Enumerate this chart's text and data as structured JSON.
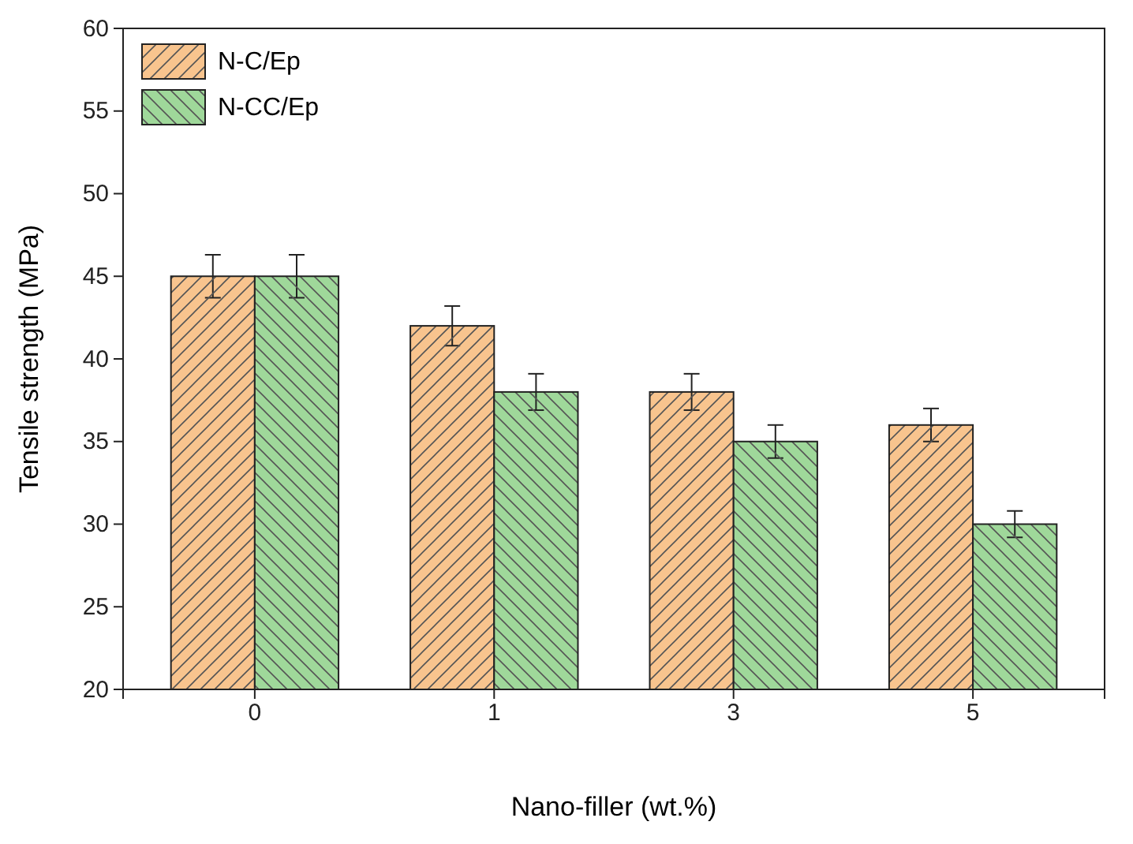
{
  "chart_data": {
    "type": "bar",
    "xlabel": "Nano-filler (wt.%)",
    "ylabel": "Tensile strength (MPa)",
    "categories": [
      "0",
      "1",
      "3",
      "5"
    ],
    "series": [
      {
        "name": "N-C/Ep",
        "color": "#f8c48e",
        "values": [
          45,
          42,
          38,
          36
        ],
        "errors": [
          1.3,
          1.2,
          1.1,
          1.0
        ]
      },
      {
        "name": "N-CC/Ep",
        "color": "#9fd89a",
        "values": [
          45,
          38,
          35,
          30
        ],
        "errors": [
          1.3,
          1.1,
          1.0,
          0.8
        ]
      }
    ],
    "ylim": [
      20,
      60
    ],
    "yticks": [
      20,
      25,
      30,
      35,
      40,
      45,
      50,
      55,
      60
    ],
    "grid": false,
    "legend": "top left"
  }
}
